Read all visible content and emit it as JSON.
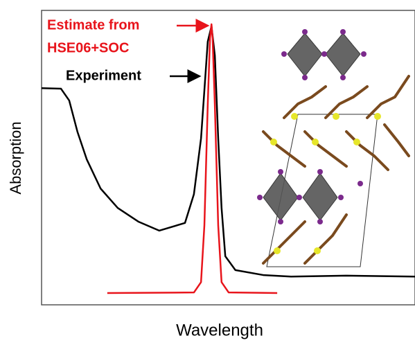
{
  "chart_data": {
    "type": "line",
    "xlabel": "Wavelength",
    "ylabel": "Absorption",
    "annotations": [
      {
        "lines": [
          "Estimate from",
          "HSE06+SOC"
        ],
        "color": "#e8141b"
      },
      {
        "lines": [
          "Experiment"
        ],
        "color": "#000000"
      }
    ],
    "xlim": [
      0,
      100
    ],
    "ylim": [
      0,
      100
    ],
    "series": [
      {
        "color": "#000000",
        "x": [
          0,
          5.2,
          7.4,
          9.6,
          12.1,
          15.8,
          20.4,
          26,
          31.5,
          38.4,
          40.8,
          42.7,
          43.6,
          44.5,
          45.5,
          46.4,
          47.3,
          48.2,
          49.2,
          51.9,
          59.4,
          66.8,
          81.6,
          100
        ],
        "values": [
          73.6,
          73.4,
          69.4,
          58.8,
          49.4,
          39.5,
          32.9,
          28.2,
          25.2,
          27.8,
          37.6,
          56.5,
          72.9,
          89.4,
          94.6,
          84.7,
          56.5,
          32.9,
          16.5,
          11.8,
          10.1,
          9.6,
          9.9,
          9.6
        ]
      },
      {
        "color": "#e8141b",
        "x": [
          17.6,
          40.8,
          42.7,
          43.6,
          44.5,
          45.1,
          45.5,
          45.8,
          46.4,
          47.3,
          48.2,
          50.1,
          63.1
        ],
        "values": [
          4,
          4.2,
          7.7,
          27,
          68,
          90.5,
          95.3,
          90.5,
          68,
          27,
          7.7,
          4.2,
          4
        ]
      }
    ]
  }
}
